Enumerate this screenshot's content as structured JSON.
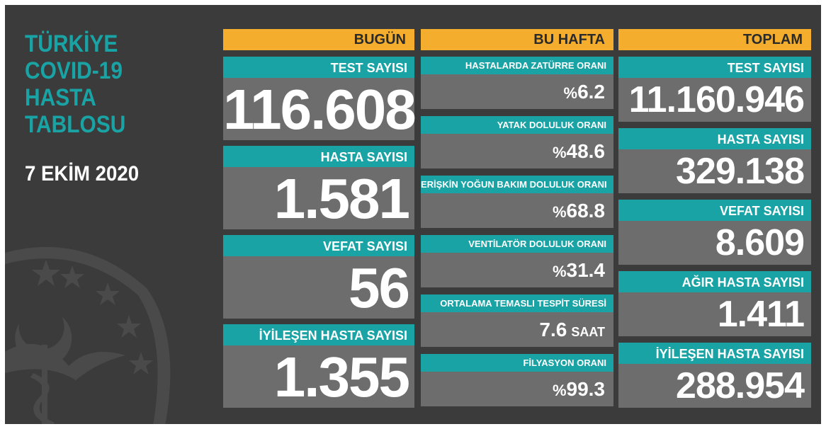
{
  "header": {
    "title_lines": [
      "TÜRKİYE",
      "COVID-19",
      "HASTA",
      "TABLOSU"
    ],
    "date": "7 EKİM 2020"
  },
  "today": {
    "heading": "BUGÜN",
    "items": [
      {
        "label": "TEST SAYISI",
        "value": "116.608"
      },
      {
        "label": "HASTA SAYISI",
        "value": "1.581"
      },
      {
        "label": "VEFAT SAYISI",
        "value": "56"
      },
      {
        "label": "İYİLEŞEN HASTA SAYISI",
        "value": "1.355"
      }
    ]
  },
  "week": {
    "heading": "BU HAFTA",
    "items": [
      {
        "label": "HASTALARDA ZATÜRRE ORANI",
        "prefix": "%",
        "value": "6.2",
        "unit": ""
      },
      {
        "label": "YATAK DOLULUK ORANI",
        "prefix": "%",
        "value": "48.6",
        "unit": ""
      },
      {
        "label": "ERİŞKİN YOĞUN BAKIM DOLULUK ORANI",
        "prefix": "%",
        "value": "68.8",
        "unit": ""
      },
      {
        "label": "VENTİLATÖR DOLULUK ORANI",
        "prefix": "%",
        "value": "31.4",
        "unit": ""
      },
      {
        "label": "ORTALAMA TEMASLI TESPİT SÜRESİ",
        "prefix": "",
        "value": "7.6",
        "unit": "SAAT"
      },
      {
        "label": "FİLYASYON ORANI",
        "prefix": "%",
        "value": "99.3",
        "unit": ""
      }
    ]
  },
  "total": {
    "heading": "TOPLAM",
    "items": [
      {
        "label": "TEST SAYISI",
        "value": "11.160.946"
      },
      {
        "label": "HASTA SAYISI",
        "value": "329.138"
      },
      {
        "label": "VEFAT SAYISI",
        "value": "8.609"
      },
      {
        "label": "AĞIR HASTA SAYISI",
        "value": "1.411"
      },
      {
        "label": "İYİLEŞEN HASTA SAYISI",
        "value": "288.954"
      }
    ]
  },
  "colors": {
    "background": "#3b3b3b",
    "teal": "#1aa3a5",
    "orange": "#f4ad2c",
    "value_box": "#6d6d6d"
  },
  "icons": {
    "emblem": "ministry-emblem-watermark"
  }
}
